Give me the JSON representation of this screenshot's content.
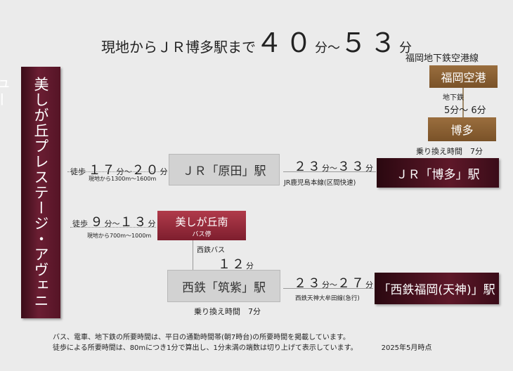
{
  "title": {
    "prefix": "現地からＪＲ博多駅まで",
    "min_time": "４０",
    "min_unit": "分",
    "tilde": "～",
    "max_time": "５３",
    "max_unit": "分"
  },
  "property": {
    "name": "美しが丘プレステージ・アヴェニュー"
  },
  "subway": {
    "line_name": "福岡地下鉄空港線",
    "station_airport": "福岡空港",
    "label": "地下鉄",
    "time": "5分～ 6分",
    "station_hakata": "博多"
  },
  "transfer_hakata": "乗り換え時間　7分",
  "route_jr": {
    "walk_label": "徒歩",
    "walk_time": "１７",
    "walk_unit1": "分",
    "walk_tilde": "～",
    "walk_time2": "２０",
    "walk_unit2": "分",
    "walk_distance": "現地から1300m～1600m",
    "station_harada": "ＪＲ「原田」駅",
    "train_time": "２３",
    "train_unit1": "分",
    "train_tilde": "～",
    "train_time2": "３３",
    "train_unit2": "分",
    "train_line": "JR鹿児島本線(区間快速)",
    "station_hakata": "ＪＲ「博多」駅"
  },
  "route_nishitetsu": {
    "walk_label": "徒歩",
    "walk_time": "９",
    "walk_unit1": "分",
    "walk_tilde": "～",
    "walk_time2": "１３",
    "walk_unit2": "分",
    "walk_distance": "現地から700m～1000m",
    "bus_stop_name": "美しが丘南",
    "bus_stop_label": "バス停",
    "bus_label": "西鉄バス",
    "bus_time": "１２",
    "bus_unit": "分",
    "station_chikushi": "西鉄「筑紫」駅",
    "transfer": "乗り換え時間　7分",
    "train_time": "２３",
    "train_unit1": "分",
    "train_tilde": "～",
    "train_time2": "２７",
    "train_unit2": "分",
    "train_line": "西鉄天神大牟田線(急行)",
    "station_fukuoka": "「西鉄福岡(天神)」駅"
  },
  "notes": {
    "line1": "バス、電車、地下鉄の所要時間は、平日の通勤時間帯(朝7時台)の所要時間を掲載しています。",
    "line2": "徒歩による所要時間は、80mにつき1分で算出し、1分未満の端数は切り上げて表示しています。",
    "date": "2025年5月時点"
  }
}
